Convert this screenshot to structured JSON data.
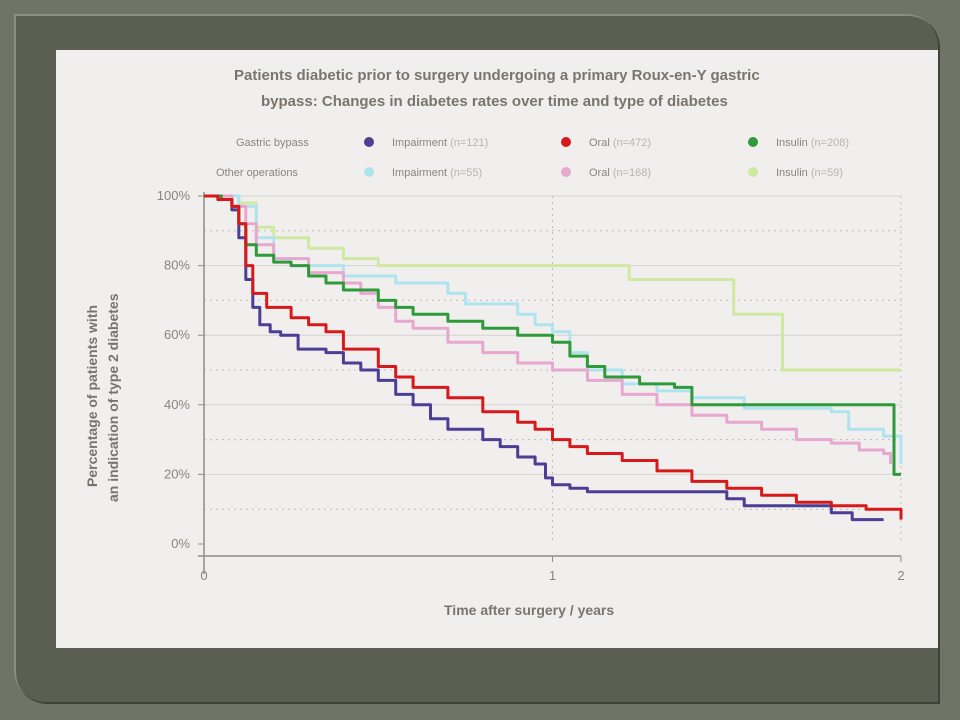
{
  "chart_data": {
    "type": "line",
    "title_lines": [
      "Patients diabetic prior to surgery undergoing a primary Roux-en-Y gastric",
      "bypass: Changes in diabetes rates over time and type of diabetes"
    ],
    "xlabel": "Time after surgery / years",
    "ylabel_lines": [
      "Percentage of patients with",
      "an indication of type 2 diabetes"
    ],
    "xlim": [
      0,
      2
    ],
    "ylim": [
      0,
      100
    ],
    "x_ticks": [
      "0",
      "1",
      "2"
    ],
    "y_ticks": [
      "0%",
      "20%",
      "40%",
      "60%",
      "80%",
      "100%"
    ],
    "legend_groups": [
      "Gastric bypass",
      "Other operations"
    ],
    "series": [
      {
        "group": "Gastric bypass",
        "name": "Impairment",
        "n": "(n=121)",
        "color": "#4b3f95",
        "points": [
          [
            0,
            100
          ],
          [
            0.04,
            99
          ],
          [
            0.08,
            96
          ],
          [
            0.1,
            88
          ],
          [
            0.12,
            76
          ],
          [
            0.14,
            68
          ],
          [
            0.16,
            63
          ],
          [
            0.19,
            61
          ],
          [
            0.22,
            60
          ],
          [
            0.27,
            56
          ],
          [
            0.35,
            55
          ],
          [
            0.4,
            52
          ],
          [
            0.45,
            50
          ],
          [
            0.5,
            47
          ],
          [
            0.55,
            43
          ],
          [
            0.6,
            40
          ],
          [
            0.65,
            36
          ],
          [
            0.7,
            33
          ],
          [
            0.8,
            30
          ],
          [
            0.85,
            28
          ],
          [
            0.9,
            25
          ],
          [
            0.95,
            23
          ],
          [
            0.98,
            19
          ],
          [
            1.0,
            17
          ],
          [
            1.05,
            16
          ],
          [
            1.1,
            15
          ],
          [
            1.3,
            15
          ],
          [
            1.5,
            13
          ],
          [
            1.55,
            11
          ],
          [
            1.7,
            11
          ],
          [
            1.8,
            9
          ],
          [
            1.86,
            7
          ],
          [
            1.95,
            7
          ]
        ]
      },
      {
        "group": "Gastric bypass",
        "name": "Oral",
        "n": "(n=472)",
        "color": "#d7191c",
        "points": [
          [
            0,
            100
          ],
          [
            0.04,
            99
          ],
          [
            0.08,
            97
          ],
          [
            0.1,
            92
          ],
          [
            0.12,
            80
          ],
          [
            0.14,
            72
          ],
          [
            0.18,
            68
          ],
          [
            0.25,
            65
          ],
          [
            0.3,
            63
          ],
          [
            0.35,
            61
          ],
          [
            0.4,
            56
          ],
          [
            0.5,
            51
          ],
          [
            0.55,
            48
          ],
          [
            0.6,
            45
          ],
          [
            0.7,
            42
          ],
          [
            0.8,
            38
          ],
          [
            0.9,
            35
          ],
          [
            0.95,
            33
          ],
          [
            1.0,
            30
          ],
          [
            1.05,
            28
          ],
          [
            1.1,
            26
          ],
          [
            1.2,
            24
          ],
          [
            1.3,
            21
          ],
          [
            1.4,
            18
          ],
          [
            1.5,
            16
          ],
          [
            1.6,
            14
          ],
          [
            1.7,
            12
          ],
          [
            1.8,
            11
          ],
          [
            1.9,
            10
          ],
          [
            2.0,
            7
          ]
        ]
      },
      {
        "group": "Gastric bypass",
        "name": "Insulin",
        "n": "(n=208)",
        "color": "#2f9a3a",
        "points": [
          [
            0,
            100
          ],
          [
            0.05,
            99
          ],
          [
            0.08,
            97
          ],
          [
            0.1,
            92
          ],
          [
            0.12,
            86
          ],
          [
            0.15,
            83
          ],
          [
            0.2,
            81
          ],
          [
            0.25,
            80
          ],
          [
            0.3,
            77
          ],
          [
            0.35,
            75
          ],
          [
            0.4,
            73
          ],
          [
            0.5,
            70
          ],
          [
            0.55,
            68
          ],
          [
            0.6,
            66
          ],
          [
            0.7,
            64
          ],
          [
            0.8,
            62
          ],
          [
            0.9,
            60
          ],
          [
            1.0,
            58
          ],
          [
            1.05,
            54
          ],
          [
            1.1,
            51
          ],
          [
            1.15,
            48
          ],
          [
            1.25,
            46
          ],
          [
            1.35,
            45
          ],
          [
            1.4,
            40
          ],
          [
            1.6,
            40
          ],
          [
            1.97,
            40
          ],
          [
            1.98,
            20
          ],
          [
            2.0,
            20
          ]
        ]
      },
      {
        "group": "Other operations",
        "name": "Impairment",
        "n": "(n=55)",
        "color": "#aee3ef",
        "points": [
          [
            0,
            100
          ],
          [
            0.1,
            97
          ],
          [
            0.15,
            88
          ],
          [
            0.2,
            82
          ],
          [
            0.3,
            80
          ],
          [
            0.4,
            77
          ],
          [
            0.55,
            75
          ],
          [
            0.7,
            72
          ],
          [
            0.75,
            69
          ],
          [
            0.9,
            66
          ],
          [
            0.95,
            63
          ],
          [
            1.0,
            61
          ],
          [
            1.05,
            55
          ],
          [
            1.1,
            50
          ],
          [
            1.2,
            46
          ],
          [
            1.3,
            44
          ],
          [
            1.4,
            42
          ],
          [
            1.55,
            39
          ],
          [
            1.8,
            38
          ],
          [
            1.85,
            33
          ],
          [
            1.95,
            31
          ],
          [
            2.0,
            23
          ]
        ]
      },
      {
        "group": "Other operations",
        "name": "Oral",
        "n": "(n=168)",
        "color": "#e7a7cf",
        "points": [
          [
            0,
            100
          ],
          [
            0.08,
            97
          ],
          [
            0.12,
            92
          ],
          [
            0.15,
            86
          ],
          [
            0.2,
            82
          ],
          [
            0.3,
            78
          ],
          [
            0.4,
            75
          ],
          [
            0.45,
            72
          ],
          [
            0.5,
            68
          ],
          [
            0.55,
            64
          ],
          [
            0.6,
            62
          ],
          [
            0.7,
            58
          ],
          [
            0.8,
            55
          ],
          [
            0.9,
            52
          ],
          [
            1.0,
            50
          ],
          [
            1.1,
            47
          ],
          [
            1.2,
            43
          ],
          [
            1.3,
            40
          ],
          [
            1.4,
            37
          ],
          [
            1.5,
            35
          ],
          [
            1.6,
            33
          ],
          [
            1.7,
            30
          ],
          [
            1.8,
            29
          ],
          [
            1.88,
            27
          ],
          [
            1.95,
            26
          ],
          [
            1.97,
            23
          ]
        ]
      },
      {
        "group": "Other operations",
        "name": "Insulin",
        "n": "(n=59)",
        "color": "#cfe8a2",
        "points": [
          [
            0,
            100
          ],
          [
            0.1,
            98
          ],
          [
            0.15,
            91
          ],
          [
            0.2,
            88
          ],
          [
            0.3,
            85
          ],
          [
            0.4,
            82
          ],
          [
            0.5,
            80
          ],
          [
            1.0,
            80
          ],
          [
            1.2,
            80
          ],
          [
            1.22,
            76
          ],
          [
            1.5,
            76
          ],
          [
            1.52,
            66
          ],
          [
            1.65,
            66
          ],
          [
            1.66,
            50
          ],
          [
            2.0,
            50
          ]
        ]
      }
    ],
    "grid": true
  }
}
